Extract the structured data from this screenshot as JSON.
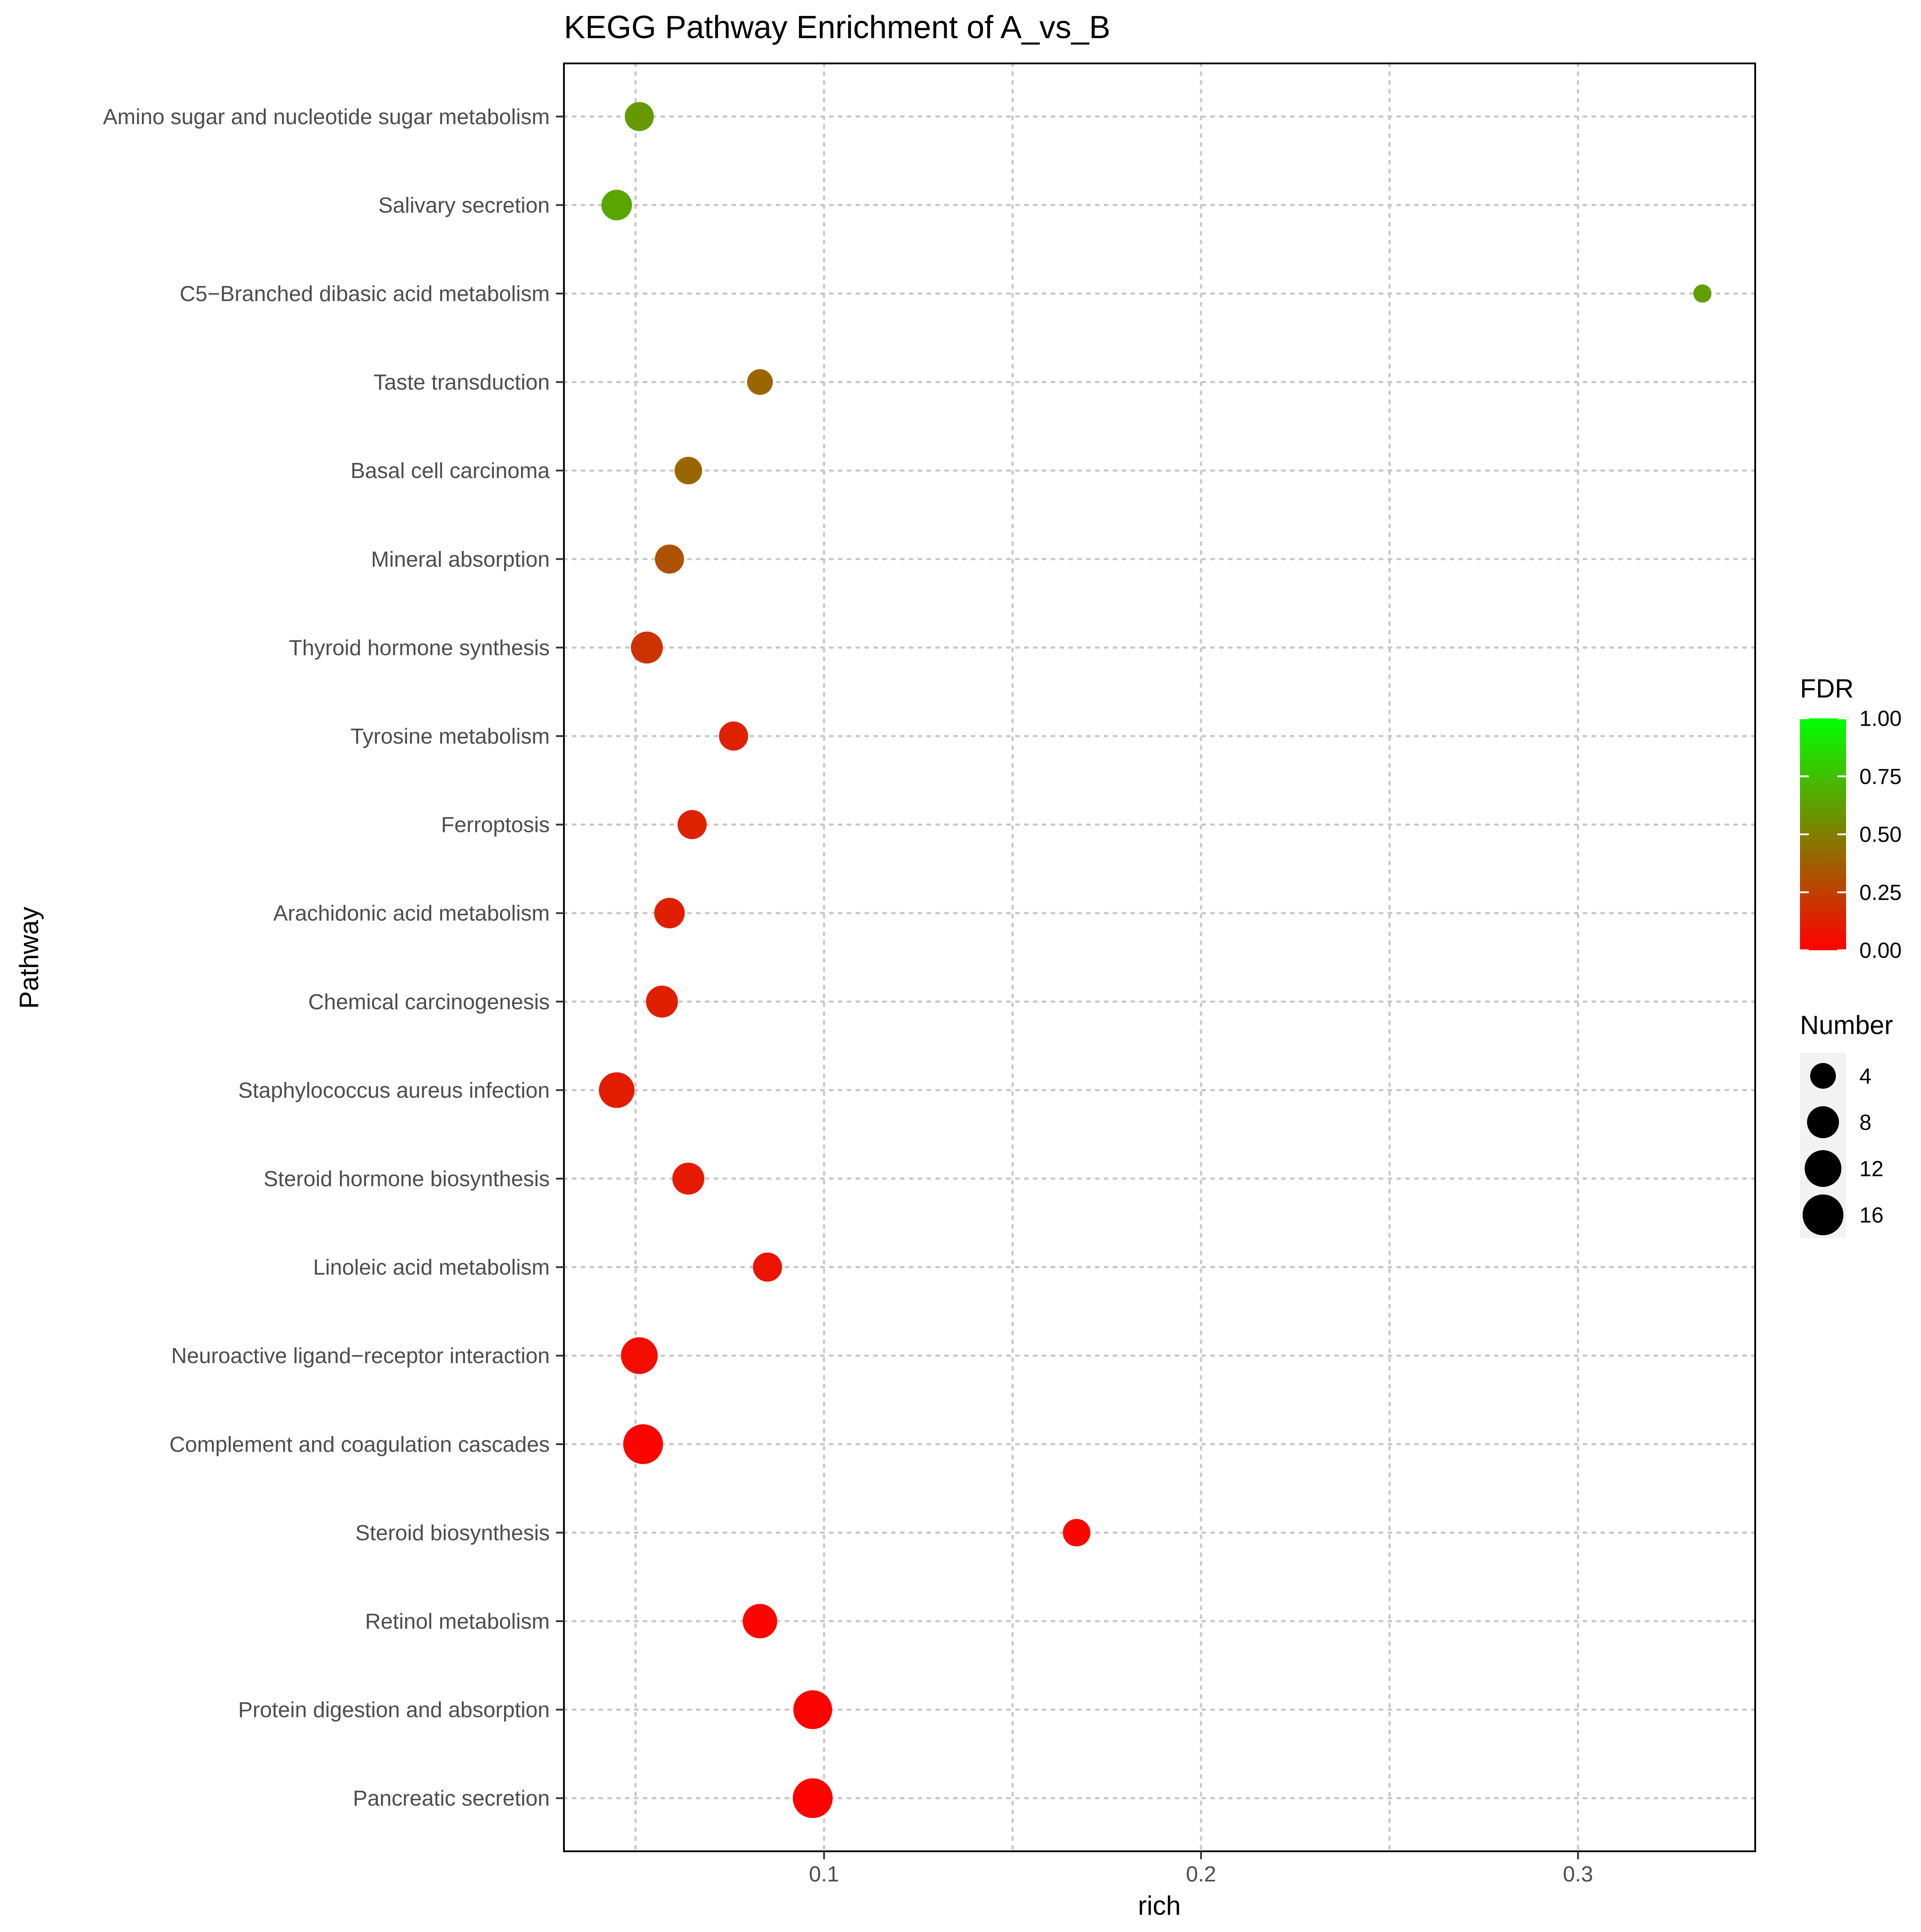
{
  "chart_data": {
    "type": "scatter",
    "title": "KEGG Pathway Enrichment of A_vs_B",
    "xlabel": "rich",
    "ylabel": "Pathway",
    "xlim": [
      0.031,
      0.347
    ],
    "xticks": [
      0.1,
      0.2,
      0.3
    ],
    "xtick_labels": [
      "0.1",
      "0.2",
      "0.3"
    ],
    "grid": true,
    "points": [
      {
        "pathway": "Amino sugar and nucleotide sugar metabolism",
        "rich": 0.051,
        "fdr": 0.6,
        "number": 6
      },
      {
        "pathway": "Salivary secretion",
        "rich": 0.045,
        "fdr": 0.65,
        "number": 7
      },
      {
        "pathway": "C5-Branched dibasic acid metabolism",
        "rich": 0.333,
        "fdr": 0.62,
        "number": 1
      },
      {
        "pathway": "Taste transduction",
        "rich": 0.083,
        "fdr": 0.4,
        "number": 4
      },
      {
        "pathway": "Basal cell carcinoma",
        "rich": 0.064,
        "fdr": 0.4,
        "number": 5
      },
      {
        "pathway": "Mineral absorption",
        "rich": 0.059,
        "fdr": 0.32,
        "number": 6
      },
      {
        "pathway": "Thyroid hormone synthesis",
        "rich": 0.053,
        "fdr": 0.2,
        "number": 8
      },
      {
        "pathway": "Tyrosine metabolism",
        "rich": 0.076,
        "fdr": 0.13,
        "number": 6
      },
      {
        "pathway": "Ferroptosis",
        "rich": 0.065,
        "fdr": 0.13,
        "number": 6
      },
      {
        "pathway": "Arachidonic acid metabolism",
        "rich": 0.059,
        "fdr": 0.12,
        "number": 7
      },
      {
        "pathway": "Chemical carcinogenesis",
        "rich": 0.057,
        "fdr": 0.12,
        "number": 8
      },
      {
        "pathway": "Staphylococcus aureus infection",
        "rich": 0.045,
        "fdr": 0.11,
        "number": 11
      },
      {
        "pathway": "Steroid hormone biosynthesis",
        "rich": 0.064,
        "fdr": 0.1,
        "number": 8
      },
      {
        "pathway": "Linoleic acid metabolism",
        "rich": 0.085,
        "fdr": 0.08,
        "number": 6
      },
      {
        "pathway": "Neuroactive ligand-receptor interaction",
        "rich": 0.051,
        "fdr": 0.05,
        "number": 12
      },
      {
        "pathway": "Complement and coagulation cascades",
        "rich": 0.052,
        "fdr": 0.02,
        "number": 15
      },
      {
        "pathway": "Steroid biosynthesis",
        "rich": 0.167,
        "fdr": 0.02,
        "number": 5
      },
      {
        "pathway": "Retinol metabolism",
        "rich": 0.083,
        "fdr": 0.02,
        "number": 10
      },
      {
        "pathway": "Protein digestion and absorption",
        "rich": 0.097,
        "fdr": 0.01,
        "number": 14
      },
      {
        "pathway": "Pancreatic secretion",
        "rich": 0.097,
        "fdr": 0.01,
        "number": 15
      }
    ],
    "legend": {
      "color": {
        "title": "FDR",
        "ticks": [
          1.0,
          0.75,
          0.5,
          0.25,
          0.0
        ],
        "tick_labels": [
          "1.00",
          "0.75",
          "0.50",
          "0.25",
          "0.00"
        ],
        "low_color": "#ff0000",
        "high_color": "#00ff00"
      },
      "size": {
        "title": "Number",
        "values": [
          4,
          8,
          12,
          16
        ],
        "labels": [
          "4",
          "8",
          "12",
          "16"
        ]
      }
    }
  }
}
